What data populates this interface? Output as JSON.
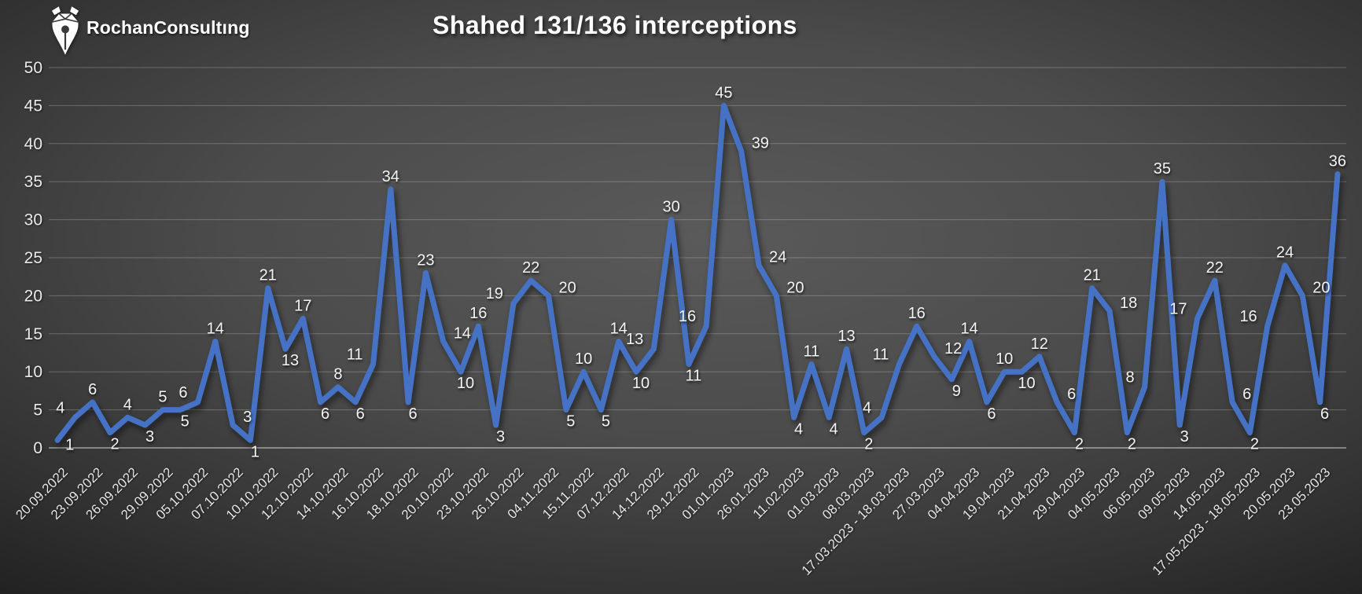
{
  "logo": {
    "brand": "RochanConsultıng",
    "icon": "pen-nib-icon"
  },
  "chart_data": {
    "type": "line",
    "title": "Shahed 131/136 interceptions",
    "xlabel": "",
    "ylabel": "",
    "ylim": [
      0,
      50
    ],
    "y_ticks": [
      0,
      5,
      10,
      15,
      20,
      25,
      30,
      35,
      40,
      45,
      50
    ],
    "grid": true,
    "legend_position": "none",
    "line_color": "#4472C4",
    "data_label_color": "#f4f4f4",
    "axis_label_color": "#e4e4e4",
    "background_center": "#5a5a5a",
    "background_edge": "#1f1f1f",
    "x_tick_every": 2,
    "x_tick_labels": [
      "20.09.2022",
      "23.09.2022",
      "26.09.2022",
      "29.09.2022",
      "05.10.2022",
      "07.10.2022",
      "10.10.2022",
      "12.10.2022",
      "14.10.2022",
      "16.10.2022",
      "18.10.2022",
      "20.10.2022",
      "23.10.2022",
      "26.10.2022",
      "04.11.2022",
      "15.11.2022",
      "07.12.2022",
      "14.12.2022",
      "29.12.2022",
      "01.01.2023",
      "26.01.2023",
      "11.02.2023",
      "01.03.2023",
      "08.03.2023",
      "17.03.2023 - 18.03.2023",
      "27.03.2023",
      "04.04.2023",
      "19.04.2023",
      "21.04.2023",
      "29.04.2023",
      "04.05.2023",
      "06.05.2023",
      "09.05.2023",
      "14.05.2023",
      "17.05.2023 - 18.05.2023",
      "20.05.2023",
      "23.05.2023"
    ],
    "series": [
      {
        "name": "Shahed 131/136 interceptions",
        "values": [
          1,
          4,
          6,
          2,
          4,
          3,
          5,
          5,
          6,
          14,
          3,
          1,
          21,
          13,
          17,
          6,
          8,
          6,
          11,
          34,
          6,
          23,
          14,
          10,
          16,
          3,
          19,
          22,
          20,
          5,
          10,
          5,
          14,
          10,
          13,
          30,
          11,
          16,
          45,
          39,
          24,
          20,
          4,
          11,
          4,
          13,
          2,
          4,
          11,
          16,
          12,
          9,
          14,
          6,
          10,
          10,
          12,
          6,
          2,
          21,
          18,
          2,
          8,
          35,
          3,
          17,
          22,
          6,
          2,
          16,
          24,
          20,
          6,
          36
        ]
      }
    ]
  }
}
